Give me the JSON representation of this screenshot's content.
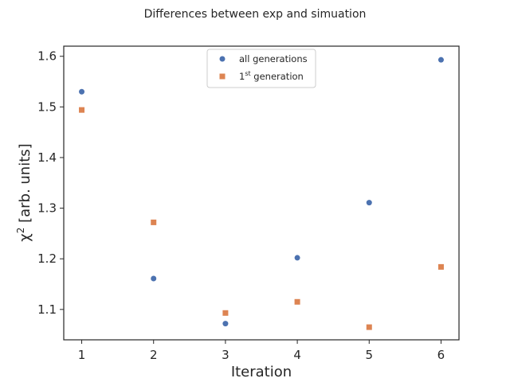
{
  "chart_data": {
    "type": "scatter",
    "title": "Differences between exp and simuation",
    "xlabel": "Iteration",
    "ylabel_main": "χ",
    "ylabel_sup": "2",
    "ylabel_rest": " [arb. units]",
    "xlim": [
      0.75,
      6.25
    ],
    "ylim": [
      1.04,
      1.62
    ],
    "xticks": [
      1,
      2,
      3,
      4,
      5,
      6
    ],
    "yticks": [
      1.1,
      1.2,
      1.3,
      1.4,
      1.5,
      1.6
    ],
    "ytick_labels": [
      "1.1",
      "1.2",
      "1.3",
      "1.4",
      "1.5",
      "1.6"
    ],
    "legend_position": "top-center",
    "grid": false,
    "series": [
      {
        "name": "all generations",
        "marker": "circle",
        "color": "#4c72b0",
        "x": [
          1,
          2,
          3,
          4,
          5,
          6
        ],
        "y": [
          1.53,
          1.161,
          1.072,
          1.202,
          1.311,
          1.593
        ]
      },
      {
        "name_main": "1",
        "name_sup": "st",
        "name_rest": " generation",
        "marker": "square",
        "color": "#dd8452",
        "x": [
          1,
          2,
          3,
          4,
          5,
          6
        ],
        "y": [
          1.494,
          1.272,
          1.093,
          1.115,
          1.065,
          1.184
        ]
      }
    ]
  }
}
